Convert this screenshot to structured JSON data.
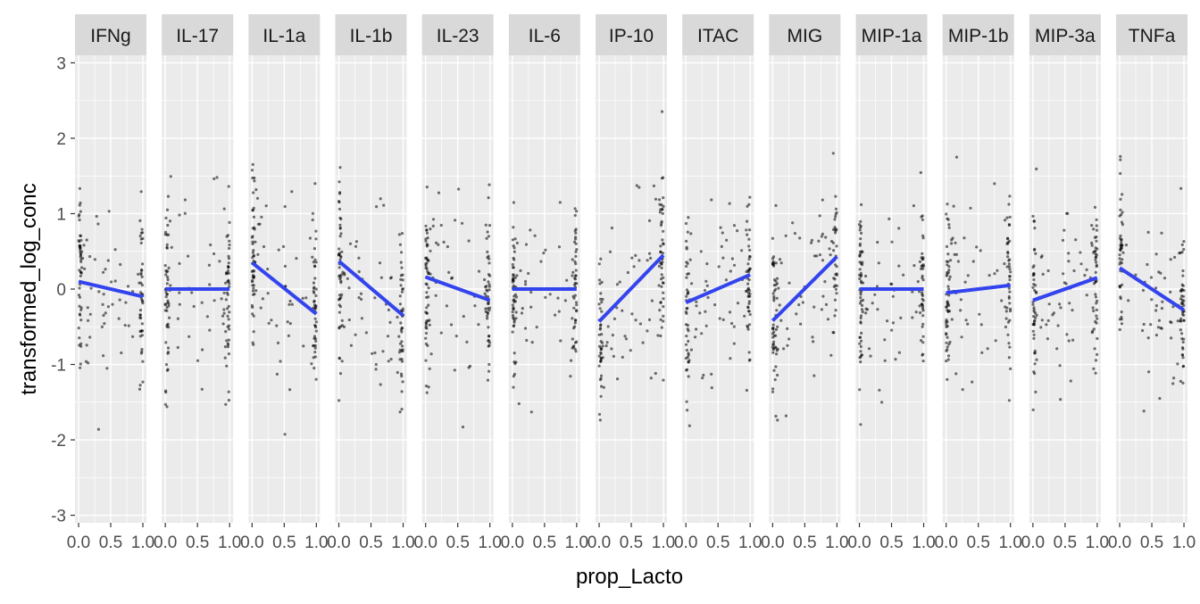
{
  "chart_data": {
    "type": "scatter",
    "layout": "faceted small multiples with fitted linear trend line per panel",
    "xlabel": "prop_Lacto",
    "ylabel": "transformed_log_conc",
    "xlim": [
      0,
      1
    ],
    "ylim": [
      -3.1,
      3.1
    ],
    "x_ticks": [
      0.0,
      0.5,
      1.0
    ],
    "x_tick_labels": [
      "0.0",
      "0.5",
      "1.0"
    ],
    "y_ticks": [
      -3,
      -2,
      -1,
      0,
      1,
      2,
      3
    ],
    "y_tick_labels": [
      "-3",
      "-2",
      "-1",
      "0",
      "1",
      "2",
      "3"
    ],
    "grid": true,
    "point_color": "#000000",
    "trend_color": "#3344ee",
    "panel_background": "#ebebeb",
    "strip_background": "#d9d9d9",
    "facets": [
      {
        "name": "IFNg",
        "trend": {
          "x": [
            0,
            1
          ],
          "y": [
            0.1,
            -0.1
          ]
        }
      },
      {
        "name": "IL-17",
        "trend": {
          "x": [
            0,
            1
          ],
          "y": [
            0.0,
            0.0
          ]
        }
      },
      {
        "name": "IL-1a",
        "trend": {
          "x": [
            0,
            1
          ],
          "y": [
            0.35,
            -0.33
          ]
        }
      },
      {
        "name": "IL-1b",
        "trend": {
          "x": [
            0,
            1
          ],
          "y": [
            0.37,
            -0.35
          ]
        }
      },
      {
        "name": "IL-23",
        "trend": {
          "x": [
            0,
            1
          ],
          "y": [
            0.16,
            -0.15
          ]
        }
      },
      {
        "name": "IL-6",
        "trend": {
          "x": [
            0,
            1
          ],
          "y": [
            0.0,
            0.0
          ]
        }
      },
      {
        "name": "IP-10",
        "trend": {
          "x": [
            0,
            1
          ],
          "y": [
            -0.43,
            0.45
          ]
        }
      },
      {
        "name": "ITAC",
        "trend": {
          "x": [
            0,
            1
          ],
          "y": [
            -0.18,
            0.19
          ]
        }
      },
      {
        "name": "MIG",
        "trend": {
          "x": [
            0,
            1
          ],
          "y": [
            -0.42,
            0.43
          ]
        }
      },
      {
        "name": "MIP-1a",
        "trend": {
          "x": [
            0,
            1
          ],
          "y": [
            0.0,
            0.0
          ]
        }
      },
      {
        "name": "MIP-1b",
        "trend": {
          "x": [
            0,
            1
          ],
          "y": [
            -0.05,
            0.05
          ]
        }
      },
      {
        "name": "MIP-3a",
        "trend": {
          "x": [
            0,
            1
          ],
          "y": [
            -0.15,
            0.15
          ]
        }
      },
      {
        "name": "TNFa",
        "trend": {
          "x": [
            0,
            1
          ],
          "y": [
            0.28,
            -0.28
          ]
        }
      }
    ]
  }
}
